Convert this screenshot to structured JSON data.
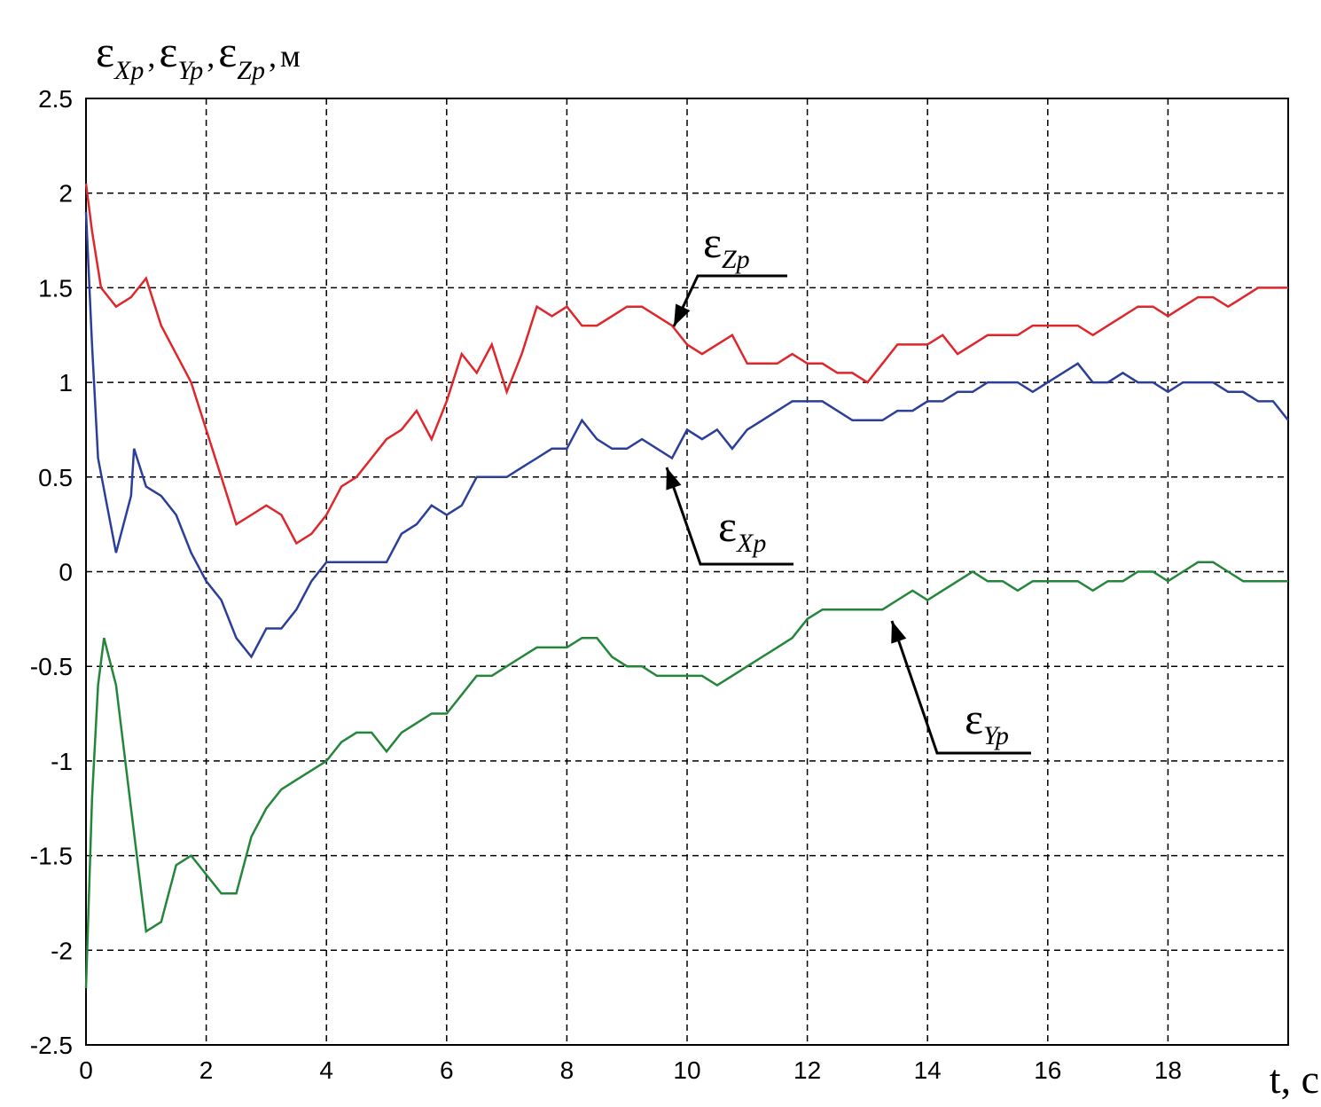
{
  "chart_data": {
    "type": "line",
    "ylabel": [
      {
        "text": "ε"
      },
      {
        "text": "Xp",
        "sub": true
      },
      {
        "text": ","
      },
      {
        "text": "ε"
      },
      {
        "text": "Yp",
        "sub": true
      },
      {
        "text": ","
      },
      {
        "text": "ε"
      },
      {
        "text": "Zp",
        "sub": true
      },
      {
        "text": ","
      },
      {
        "text": "м"
      }
    ],
    "xlabel": "t, c",
    "xlim": [
      0,
      20
    ],
    "ylim": [
      -2.5,
      2.5
    ],
    "xticks": [
      0,
      2,
      4,
      6,
      8,
      10,
      12,
      14,
      16,
      18
    ],
    "yticks": [
      -2.5,
      -2,
      -1.5,
      -1,
      -0.5,
      0,
      0.5,
      1,
      1.5,
      2,
      2.5
    ],
    "grid": true,
    "series": [
      {
        "label": {
          "symbol": "ε",
          "subscript": "Zp"
        },
        "color": "#e0262a",
        "x": [
          0,
          0.1,
          0.25,
          0.5,
          0.75,
          1,
          1.25,
          1.5,
          1.75,
          2,
          2.25,
          2.5,
          2.75,
          3,
          3.25,
          3.5,
          3.75,
          4,
          4.25,
          4.5,
          4.75,
          5,
          5.25,
          5.5,
          5.75,
          6,
          6.25,
          6.5,
          6.75,
          7,
          7.25,
          7.5,
          7.75,
          8,
          8.25,
          8.5,
          8.75,
          9,
          9.25,
          9.5,
          9.75,
          10,
          10.25,
          10.5,
          10.75,
          11,
          11.25,
          11.5,
          11.75,
          12,
          12.25,
          12.5,
          12.75,
          13,
          13.25,
          13.5,
          13.75,
          14,
          14.25,
          14.5,
          14.75,
          15,
          15.25,
          15.5,
          15.75,
          16,
          16.25,
          16.5,
          16.75,
          17,
          17.25,
          17.5,
          17.75,
          18,
          18.25,
          18.5,
          18.75,
          19,
          19.25,
          19.5,
          19.75,
          20
        ],
        "values": [
          2.05,
          1.8,
          1.5,
          1.4,
          1.45,
          1.55,
          1.3,
          1.15,
          1.0,
          0.75,
          0.5,
          0.25,
          0.3,
          0.35,
          0.3,
          0.15,
          0.2,
          0.3,
          0.45,
          0.5,
          0.6,
          0.7,
          0.75,
          0.85,
          0.7,
          0.9,
          1.15,
          1.05,
          1.2,
          0.95,
          1.15,
          1.4,
          1.35,
          1.4,
          1.3,
          1.3,
          1.35,
          1.4,
          1.4,
          1.35,
          1.3,
          1.2,
          1.15,
          1.2,
          1.25,
          1.1,
          1.1,
          1.1,
          1.15,
          1.1,
          1.1,
          1.05,
          1.05,
          1.0,
          1.1,
          1.2,
          1.2,
          1.2,
          1.25,
          1.15,
          1.2,
          1.25,
          1.25,
          1.25,
          1.3,
          1.3,
          1.3,
          1.3,
          1.25,
          1.3,
          1.35,
          1.4,
          1.4,
          1.35,
          1.4,
          1.45,
          1.45,
          1.4,
          1.45,
          1.5,
          1.5,
          1.5
        ]
      },
      {
        "label": {
          "symbol": "ε",
          "subscript": "Xp"
        },
        "color": "#2b3f9a",
        "x": [
          0,
          0.1,
          0.2,
          0.35,
          0.5,
          0.75,
          0.8,
          1,
          1.25,
          1.5,
          1.75,
          2,
          2.25,
          2.5,
          2.75,
          3,
          3.25,
          3.5,
          3.75,
          4,
          4.25,
          4.5,
          4.75,
          5,
          5.25,
          5.5,
          5.75,
          6,
          6.25,
          6.5,
          6.75,
          7,
          7.25,
          7.5,
          7.75,
          8,
          8.25,
          8.5,
          8.75,
          9,
          9.25,
          9.5,
          9.75,
          10,
          10.25,
          10.5,
          10.75,
          11,
          11.25,
          11.5,
          11.75,
          12,
          12.25,
          12.5,
          12.75,
          13,
          13.25,
          13.5,
          13.75,
          14,
          14.25,
          14.5,
          14.75,
          15,
          15.25,
          15.5,
          15.75,
          16,
          16.25,
          16.5,
          16.75,
          17,
          17.25,
          17.5,
          17.75,
          18,
          18.25,
          18.5,
          18.75,
          19,
          19.25,
          19.5,
          19.75,
          20
        ],
        "values": [
          1.9,
          1.2,
          0.6,
          0.35,
          0.1,
          0.4,
          0.65,
          0.45,
          0.4,
          0.3,
          0.1,
          -0.05,
          -0.15,
          -0.35,
          -0.45,
          -0.3,
          -0.3,
          -0.2,
          -0.05,
          0.05,
          0.05,
          0.05,
          0.05,
          0.05,
          0.2,
          0.25,
          0.35,
          0.3,
          0.35,
          0.5,
          0.5,
          0.5,
          0.55,
          0.6,
          0.65,
          0.65,
          0.8,
          0.7,
          0.65,
          0.65,
          0.7,
          0.65,
          0.6,
          0.75,
          0.7,
          0.75,
          0.65,
          0.75,
          0.8,
          0.85,
          0.9,
          0.9,
          0.9,
          0.85,
          0.8,
          0.8,
          0.8,
          0.85,
          0.85,
          0.9,
          0.9,
          0.95,
          0.95,
          1.0,
          1.0,
          1.0,
          0.95,
          1.0,
          1.05,
          1.1,
          1.0,
          1.0,
          1.05,
          1.0,
          1.0,
          0.95,
          1.0,
          1.0,
          1.0,
          0.95,
          0.95,
          0.9,
          0.9,
          0.8
        ]
      },
      {
        "label": {
          "symbol": "ε",
          "subscript": "Yp"
        },
        "color": "#23863a",
        "x": [
          0,
          0.1,
          0.2,
          0.3,
          0.5,
          0.75,
          1,
          1.25,
          1.5,
          1.75,
          2,
          2.25,
          2.5,
          2.75,
          3,
          3.25,
          3.5,
          3.75,
          4,
          4.25,
          4.5,
          4.75,
          5,
          5.25,
          5.5,
          5.75,
          6,
          6.25,
          6.5,
          6.75,
          7,
          7.25,
          7.5,
          7.75,
          8,
          8.25,
          8.5,
          8.75,
          9,
          9.25,
          9.5,
          9.75,
          10,
          10.25,
          10.5,
          10.75,
          11,
          11.25,
          11.5,
          11.75,
          12,
          12.25,
          12.5,
          12.75,
          13,
          13.25,
          13.5,
          13.75,
          14,
          14.25,
          14.5,
          14.75,
          15,
          15.25,
          15.5,
          15.75,
          16,
          16.25,
          16.5,
          16.75,
          17,
          17.25,
          17.5,
          17.75,
          18,
          18.25,
          18.5,
          18.75,
          19,
          19.25,
          19.5,
          19.75,
          20
        ],
        "values": [
          -2.2,
          -1.2,
          -0.6,
          -0.35,
          -0.6,
          -1.25,
          -1.9,
          -1.85,
          -1.55,
          -1.5,
          -1.6,
          -1.7,
          -1.7,
          -1.4,
          -1.25,
          -1.15,
          -1.1,
          -1.05,
          -1.0,
          -0.9,
          -0.85,
          -0.85,
          -0.95,
          -0.85,
          -0.8,
          -0.75,
          -0.75,
          -0.65,
          -0.55,
          -0.55,
          -0.5,
          -0.45,
          -0.4,
          -0.4,
          -0.4,
          -0.35,
          -0.35,
          -0.45,
          -0.5,
          -0.5,
          -0.55,
          -0.55,
          -0.55,
          -0.55,
          -0.6,
          -0.55,
          -0.5,
          -0.45,
          -0.4,
          -0.35,
          -0.25,
          -0.2,
          -0.2,
          -0.2,
          -0.2,
          -0.2,
          -0.15,
          -0.1,
          -0.15,
          -0.1,
          -0.05,
          0.0,
          -0.05,
          -0.05,
          -0.1,
          -0.05,
          -0.05,
          -0.05,
          -0.05,
          -0.1,
          -0.05,
          -0.05,
          0.0,
          0.0,
          -0.05,
          0.0,
          0.05,
          0.05,
          0.0,
          -0.05,
          -0.05,
          -0.05,
          -0.05
        ]
      }
    ]
  }
}
